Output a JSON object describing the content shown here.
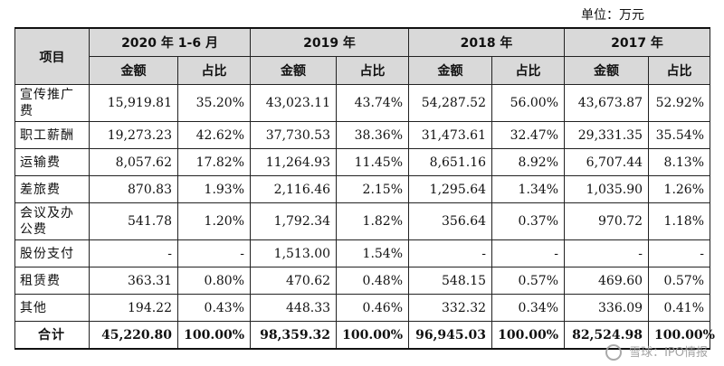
{
  "unit_label": "单位：万元",
  "table": {
    "header_item": "项目",
    "years": [
      "2020 年 1-6 月",
      "2019 年",
      "2018 年",
      "2017 年"
    ],
    "sub_amount": "金额",
    "sub_ratio": "占比",
    "rows": [
      {
        "label": "宣传推广费",
        "values": [
          "15,919.81",
          "35.20%",
          "43,023.11",
          "43.74%",
          "54,287.52",
          "56.00%",
          "43,673.87",
          "52.92%"
        ]
      },
      {
        "label": "职工薪酬",
        "values": [
          "19,273.23",
          "42.62%",
          "37,730.53",
          "38.36%",
          "31,473.61",
          "32.47%",
          "29,331.35",
          "35.54%"
        ]
      },
      {
        "label": "运输费",
        "values": [
          "8,057.62",
          "17.82%",
          "11,264.93",
          "11.45%",
          "8,651.16",
          "8.92%",
          "6,707.44",
          "8.13%"
        ]
      },
      {
        "label": "差旅费",
        "values": [
          "870.83",
          "1.93%",
          "2,116.46",
          "2.15%",
          "1,295.64",
          "1.34%",
          "1,035.90",
          "1.26%"
        ]
      },
      {
        "label": "会议及办公费",
        "values": [
          "541.78",
          "1.20%",
          "1,792.34",
          "1.82%",
          "356.64",
          "0.37%",
          "970.72",
          "1.18%"
        ]
      },
      {
        "label": "股份支付",
        "values": [
          "-",
          "-",
          "1,513.00",
          "1.54%",
          "-",
          "-",
          "-",
          "-"
        ]
      },
      {
        "label": "租赁费",
        "values": [
          "363.31",
          "0.80%",
          "470.62",
          "0.48%",
          "548.15",
          "0.57%",
          "469.60",
          "0.57%"
        ]
      },
      {
        "label": "其他",
        "values": [
          "194.22",
          "0.43%",
          "448.33",
          "0.46%",
          "332.32",
          "0.34%",
          "336.09",
          "0.41%"
        ]
      }
    ],
    "total": {
      "label": "合计",
      "values": [
        "45,220.80",
        "100.00%",
        "98,359.32",
        "100.00%",
        "96,945.03",
        "100.00%",
        "82,524.98",
        "100.00%"
      ]
    }
  },
  "watermark": "雪球：IPO情报"
}
